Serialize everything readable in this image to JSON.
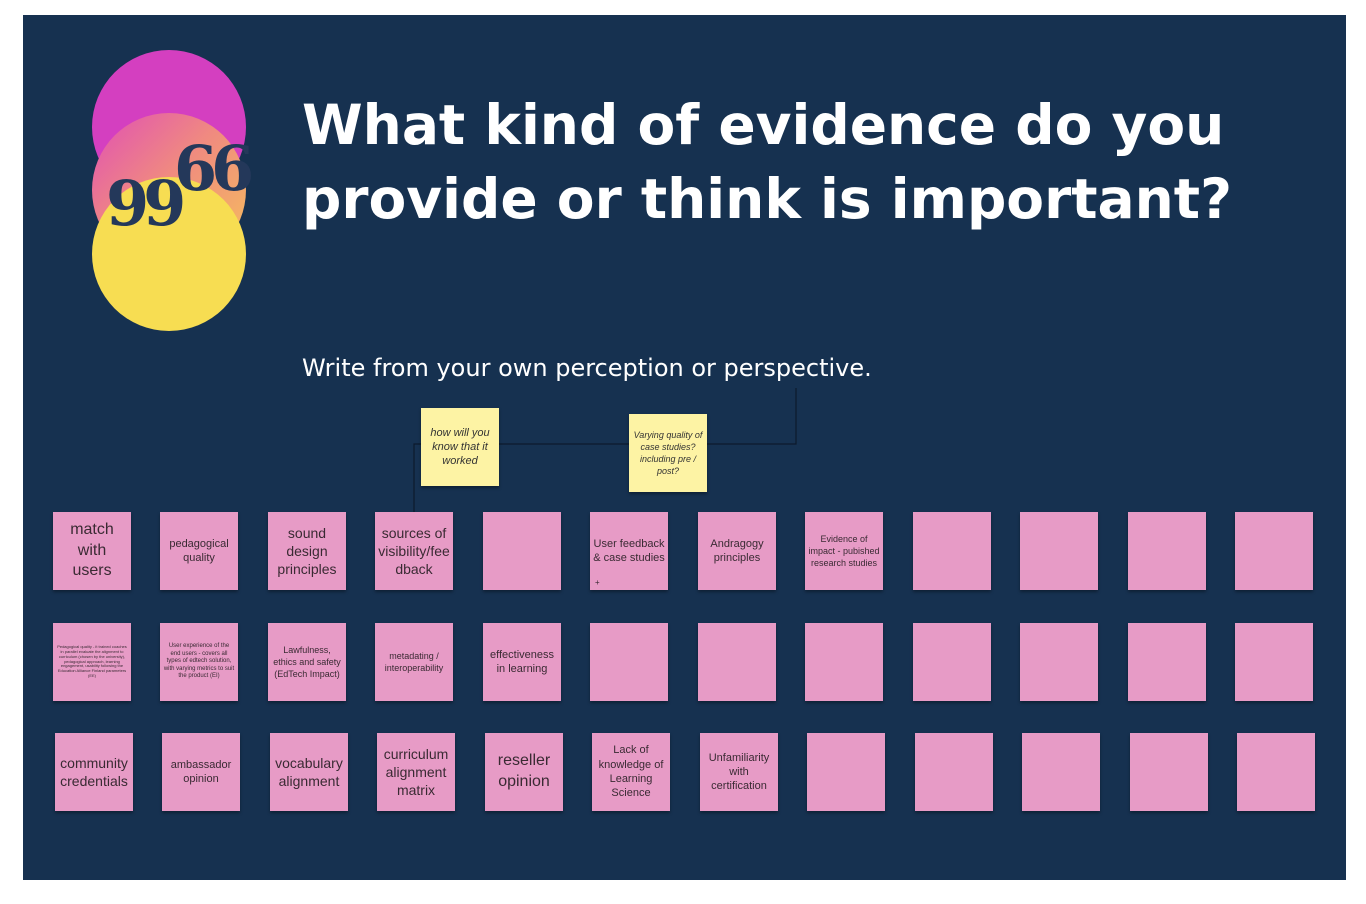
{
  "board": {
    "title": "What kind of evidence do you provide or think is important?",
    "subtitle": "Write from your own perception or perspective.",
    "quote_open_glyph": "66",
    "quote_close_glyph": "99",
    "colors": {
      "background": "#163150",
      "sticky_pink": "#e79bc6",
      "sticky_yellow": "#fdf3a4",
      "circle_magenta": "#d43fc0",
      "circle_yellow": "#f7dd52"
    }
  },
  "yellow_notes": [
    "how will you know that it worked",
    "Varying quality of case studies? including pre / post?"
  ],
  "rows": [
    [
      "match with users",
      "pedagogical quality",
      "sound design principles",
      "sources of visibility/feedback",
      "",
      "User feedback & case studies",
      "Andragogy principles",
      "Evidence of impact - pubished research studies",
      "",
      "",
      "",
      ""
    ],
    [
      "Pedagogical quality - it trained coaches in parallel evaluate the alignment to curriculum (chosen by the university), pedagogical approach, learning engagement, usability following the Education Alliance Finland parameters (EE)",
      "User experience of the end users - covers all types of edtech solution, with varying metrics to suit the product (EI)",
      "Lawfulness, ethics and safety (EdTech Impact)",
      "metadating / interoperability",
      "effectiveness in learning",
      "",
      "",
      "",
      "",
      "",
      "",
      ""
    ],
    [
      "community credentials",
      "ambassador opinion",
      "vocabulary alignment",
      "curriculum alignment matrix",
      "reseller opinion",
      "Lack of knowledge of Learning Science",
      "Unfamiliarity with certification",
      "",
      "",
      "",
      "",
      ""
    ]
  ],
  "note_marks": {
    "user_feedback_plus": "+"
  }
}
